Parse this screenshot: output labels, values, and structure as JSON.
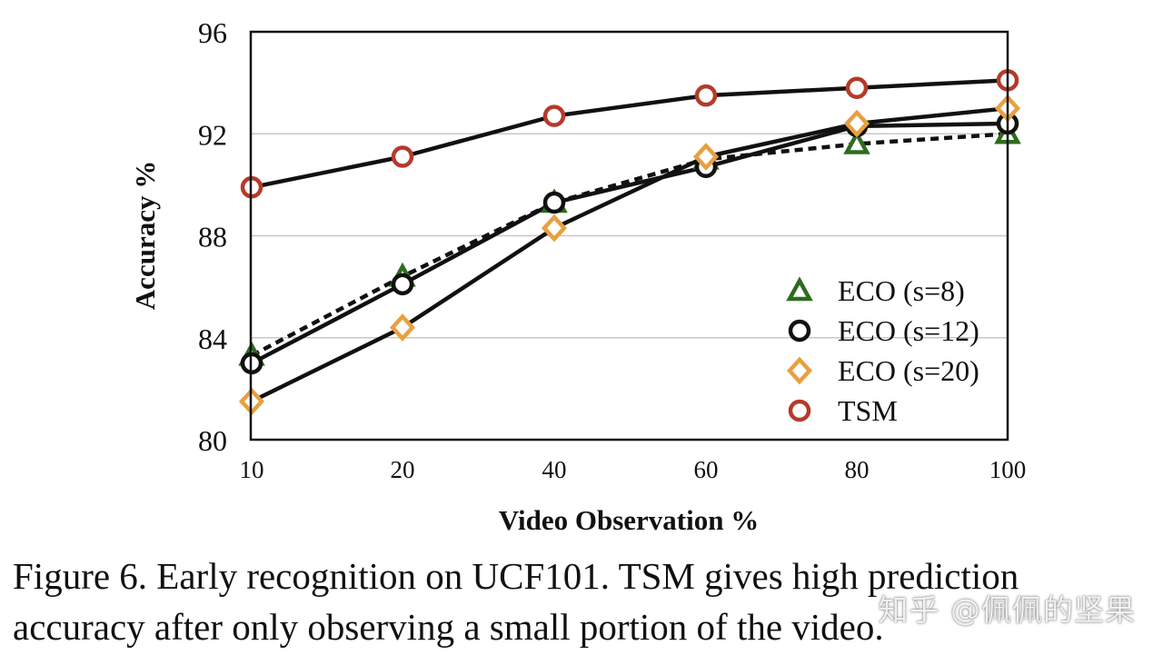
{
  "chart_data": {
    "type": "line",
    "title": "",
    "xlabel": "Video Observation %",
    "ylabel": "Accuracy %",
    "categories": [
      "10",
      "20",
      "40",
      "60",
      "80",
      "100"
    ],
    "ylim": [
      80,
      96
    ],
    "yticks": [
      80,
      84,
      88,
      92,
      96
    ],
    "grid": "horizontal",
    "legend_position": "bottom-right",
    "series": [
      {
        "name": "ECO (s=8)",
        "marker": "triangle",
        "color": "#2f6b1e",
        "line_style": "dashed",
        "values": [
          83.3,
          86.4,
          89.3,
          91.0,
          91.6,
          92.0
        ]
      },
      {
        "name": "ECO (s=12)",
        "marker": "circle",
        "color": "#111111",
        "line_style": "solid",
        "values": [
          83.0,
          86.1,
          89.3,
          90.7,
          92.3,
          92.4
        ]
      },
      {
        "name": "ECO (s=20)",
        "marker": "diamond",
        "color": "#e8a040",
        "line_style": "solid",
        "values": [
          81.5,
          84.4,
          88.3,
          91.1,
          92.4,
          93.0
        ]
      },
      {
        "name": "TSM",
        "marker": "circle",
        "color": "#b53a2a",
        "line_style": "solid",
        "values": [
          89.9,
          91.1,
          92.7,
          93.5,
          93.8,
          94.1
        ]
      }
    ]
  },
  "caption": "Figure 6. Early recognition on UCF101. TSM gives high prediction accuracy after only observing a small portion of the video.",
  "watermark": "知乎 @佩佩的坚果"
}
